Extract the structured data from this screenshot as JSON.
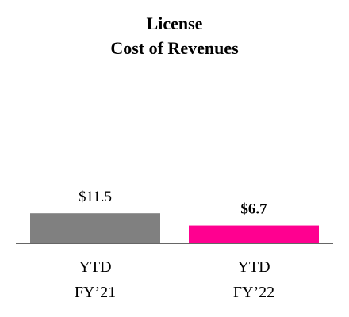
{
  "chart_data": {
    "type": "bar",
    "title": "License\nCost of Revenues",
    "categories": [
      "YTD\nFY’21",
      "YTD\nFY’22"
    ],
    "values": [
      11.5,
      6.7
    ],
    "value_labels": [
      "$11.5",
      "$6.7"
    ],
    "colors": [
      "#808080",
      "#ff0090"
    ]
  }
}
